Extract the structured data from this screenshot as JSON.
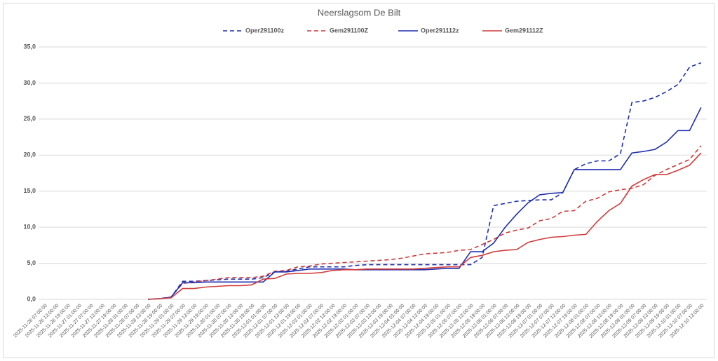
{
  "chart_data": {
    "type": "line",
    "title": "Neerslagsom De Bilt",
    "categories": [
      "2025-11-26 07:00:00",
      "2025-11-26 13:00:00",
      "2025-11-26 19:00:00",
      "2025-11-27 01:00:00",
      "2025-11-27 07:00:00",
      "2025-11-27 13:00:00",
      "2025-11-27 19:00:00",
      "2025-11-28 01:00:00",
      "2025-11-28 07:00:00",
      "2025-11-28 13:00:00",
      "2025-11-28 19:00:00",
      "2025-11-29 01:00:00",
      "2025-11-29 07:00:00",
      "2025-11-29 13:00:00",
      "2025-11-29 19:00:00",
      "2025-11-30 01:00:00",
      "2025-11-30 07:00:00",
      "2025-11-30 13:00:00",
      "2025-11-30 19:00:00",
      "2025-12-01 01:00:00",
      "2025-12-01 07:00:00",
      "2025-12-01 13:00:00",
      "2025-12-01 19:00:00",
      "2025-12-02 01:00:00",
      "2025-12-02 07:00:00",
      "2025-12-02 13:00:00",
      "2025-12-02 19:00:00",
      "2025-12-03 01:00:00",
      "2025-12-03 07:00:00",
      "2025-12-03 13:00:00",
      "2025-12-03 19:00:00",
      "2025-12-04 01:00:00",
      "2025-12-04 07:00:00",
      "2025-12-04 13:00:00",
      "2025-12-04 19:00:00",
      "2025-12-05 01:00:00",
      "2025-12-05 07:00:00",
      "2025-12-05 13:00:00",
      "2025-12-05 19:00:00",
      "2025-12-06 01:00:00",
      "2025-12-06 07:00:00",
      "2025-12-06 13:00:00",
      "2025-12-06 19:00:00",
      "2025-12-07 01:00:00",
      "2025-12-07 07:00:00",
      "2025-12-07 13:00:00",
      "2025-12-07 19:00:00",
      "2025-12-08 01:00:00",
      "2025-12-08 07:00:00",
      "2025-12-08 13:00:00",
      "2025-12-08 19:00:00",
      "2025-12-09 01:00:00",
      "2025-12-09 07:00:00",
      "2025-12-09 13:00:00",
      "2025-12-09 19:00:00",
      "2025-12-10 01:00:00",
      "2025-12-10 07:00:00",
      "2025-12-10 13:00:00"
    ],
    "series": [
      {
        "name": "Oper291100z",
        "color": "#1f2fb0",
        "dashed": true,
        "values": [
          null,
          null,
          null,
          null,
          null,
          null,
          null,
          null,
          null,
          0,
          0.1,
          0.3,
          2.5,
          2.5,
          2.6,
          2.7,
          2.8,
          2.8,
          2.8,
          3.0,
          3.8,
          3.9,
          4.2,
          4.5,
          4.5,
          4.5,
          4.5,
          4.7,
          4.8,
          4.8,
          4.8,
          4.8,
          4.8,
          4.8,
          4.8,
          4.8,
          4.8,
          4.8,
          5.8,
          13.0,
          13.3,
          13.6,
          13.7,
          13.8,
          13.8,
          14.8,
          18.0,
          18.8,
          19.2,
          19.2,
          20.2,
          27.3,
          27.5,
          28.0,
          28.8,
          29.8,
          32.2,
          32.8
        ]
      },
      {
        "name": "Gem291100Z",
        "color": "#d03a3a",
        "dashed": true,
        "values": [
          null,
          null,
          null,
          null,
          null,
          null,
          null,
          null,
          null,
          0,
          0.1,
          0.3,
          2.2,
          2.4,
          2.6,
          2.8,
          3.0,
          3.0,
          3.0,
          3.2,
          3.9,
          4.0,
          4.5,
          4.6,
          4.9,
          5.0,
          5.1,
          5.2,
          5.3,
          5.4,
          5.5,
          5.7,
          6.0,
          6.3,
          6.4,
          6.5,
          6.8,
          6.9,
          7.6,
          8.3,
          9.2,
          9.6,
          9.9,
          10.9,
          11.2,
          12.2,
          12.3,
          13.6,
          14.0,
          14.9,
          15.2,
          15.4,
          15.9,
          17.2,
          18.0,
          18.7,
          19.4,
          21.3
        ]
      },
      {
        "name": "Oper291112z",
        "color": "#1f2fb0",
        "dashed": false,
        "values": [
          null,
          null,
          null,
          null,
          null,
          null,
          null,
          null,
          null,
          0,
          0.1,
          0.3,
          2.3,
          2.3,
          2.4,
          2.4,
          2.4,
          2.4,
          2.4,
          2.4,
          3.8,
          3.8,
          4.0,
          4.2,
          4.2,
          4.2,
          4.2,
          4.1,
          4.1,
          4.1,
          4.1,
          4.1,
          4.1,
          4.1,
          4.2,
          4.3,
          4.3,
          6.6,
          6.6,
          7.8,
          10.0,
          11.8,
          13.4,
          14.5,
          14.7,
          14.8,
          18.0,
          18.0,
          18.0,
          18.0,
          18.0,
          20.3,
          20.5,
          20.8,
          21.8,
          23.4,
          23.4,
          26.6
        ]
      },
      {
        "name": "Gem291112Z",
        "color": "#d03a3a",
        "dashed": false,
        "values": [
          null,
          null,
          null,
          null,
          null,
          null,
          null,
          null,
          null,
          0,
          0.1,
          0.2,
          1.5,
          1.5,
          1.7,
          1.8,
          1.9,
          1.9,
          2.0,
          2.8,
          2.9,
          3.5,
          3.6,
          3.6,
          3.7,
          4.0,
          4.1,
          4.1,
          4.2,
          4.2,
          4.2,
          4.2,
          4.2,
          4.3,
          4.4,
          4.5,
          4.5,
          5.8,
          6.1,
          6.6,
          6.8,
          6.9,
          7.9,
          8.3,
          8.6,
          8.7,
          8.9,
          9.0,
          10.8,
          12.3,
          13.3,
          15.7,
          16.6,
          17.3,
          17.3,
          17.9,
          18.6,
          20.3
        ]
      }
    ],
    "ylim": [
      0,
      35
    ],
    "yticks": [
      {
        "value": 0,
        "label": "0,0"
      },
      {
        "value": 5,
        "label": "5,0"
      },
      {
        "value": 10,
        "label": "10,0"
      },
      {
        "value": 15,
        "label": "15,0"
      },
      {
        "value": 20,
        "label": "20,0"
      },
      {
        "value": 25,
        "label": "25,0"
      },
      {
        "value": 30,
        "label": "30,0"
      },
      {
        "value": 35,
        "label": "35,0"
      }
    ],
    "grid": true,
    "legend": "top"
  }
}
